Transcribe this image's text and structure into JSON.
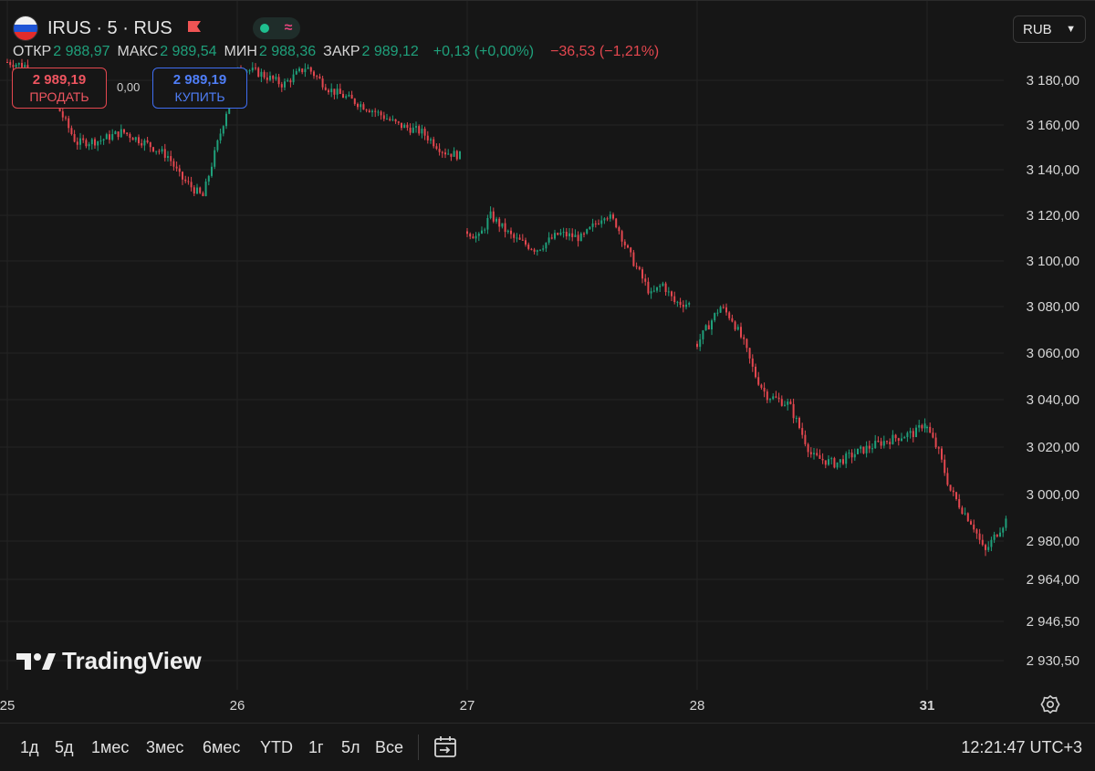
{
  "header": {
    "symbol_title": "IRUS · 5 · RUS",
    "ohlc": {
      "open_label": "ОТКР",
      "open_value": "2 988,97",
      "high_label": "МАКС",
      "high_value": "2 989,54",
      "low_label": "МИН",
      "low_value": "2 988,36",
      "close_label": "ЗАКР",
      "close_value": "2 989,12",
      "change_bar": "+0,13 (+0,00%)",
      "change_day": "−36,53 (−1,21%)"
    },
    "sell": {
      "price": "2 989,19",
      "label": "ПРОДАТЬ"
    },
    "buy": {
      "price": "2 989,19",
      "label": "КУПИТЬ"
    },
    "spread": "0,00",
    "currency": "RUB"
  },
  "logo_text": "TradingView",
  "toolbar": {
    "ranges": [
      "1д",
      "5д",
      "1мес",
      "3мес",
      "6мес",
      "YTD",
      "1г",
      "5л",
      "Все"
    ],
    "clock": "12:21:47 UTC+3"
  },
  "colors": {
    "up": "#1fa07b",
    "down": "#e3474f",
    "grid": "#242424",
    "background": "#161616"
  },
  "chart_data": {
    "type": "line",
    "subtype": "candlestick",
    "x_ticks": [
      "25",
      "26",
      "27",
      "28",
      "31"
    ],
    "y_ticks": [
      "3 180,00",
      "3 160,00",
      "3 140,00",
      "3 120,00",
      "3 100,00",
      "3 080,00",
      "3 060,00",
      "3 040,00",
      "3 020,00",
      "3 000,00",
      "2 980,00",
      "2 964,00",
      "2 946,50",
      "2 930,50"
    ],
    "y_tick_values": [
      3180,
      3160,
      3140,
      3120,
      3100,
      3080,
      3060,
      3040,
      3020,
      3000,
      2980,
      2964,
      2946.5,
      2930.5
    ],
    "ylim": [
      2924,
      3196
    ],
    "grid": true,
    "series": [
      {
        "x": [
          25.0,
          25.1,
          25.2,
          25.3,
          25.4,
          25.5,
          25.6,
          25.7,
          25.75,
          25.85,
          25.95,
          26.0,
          26.1,
          26.2,
          26.3,
          26.4,
          26.5,
          26.6,
          26.7,
          26.8,
          26.9,
          26.98
        ],
        "values": [
          3188,
          3186,
          3172,
          3152,
          3153,
          3157,
          3152,
          3146,
          3137,
          3128,
          3165,
          3186,
          3183,
          3178,
          3186,
          3176,
          3171,
          3166,
          3160,
          3157,
          3148,
          3146
        ]
      },
      {
        "x": [
          27.0,
          27.05,
          27.1,
          27.2,
          27.3,
          27.4,
          27.5,
          27.6,
          27.65,
          27.7,
          27.8,
          27.85,
          27.9,
          27.97
        ],
        "values": [
          3113,
          3110,
          3120,
          3110,
          3105,
          3112,
          3110,
          3121,
          3116,
          3104,
          3085,
          3090,
          3082,
          3081
        ]
      },
      {
        "x": [
          28.0,
          28.05,
          28.1,
          28.15,
          28.2,
          28.25,
          28.3,
          28.35,
          28.4,
          28.5,
          28.6,
          28.7,
          28.8,
          28.9,
          28.95,
          29.0,
          29.05
        ],
        "values": [
          3064,
          3072,
          3080,
          3075,
          3065,
          3051,
          3042,
          3040,
          3038,
          3016,
          3013,
          3018,
          3022,
          3025,
          3026,
          3032,
          3028
        ]
      },
      {
        "x": [
          31.0,
          31.05,
          31.1,
          31.15,
          31.2,
          31.25,
          31.3,
          31.35
        ],
        "values": [
          3028,
          3018,
          3002,
          2994,
          2987,
          2975,
          2983,
          2990
        ]
      }
    ]
  }
}
